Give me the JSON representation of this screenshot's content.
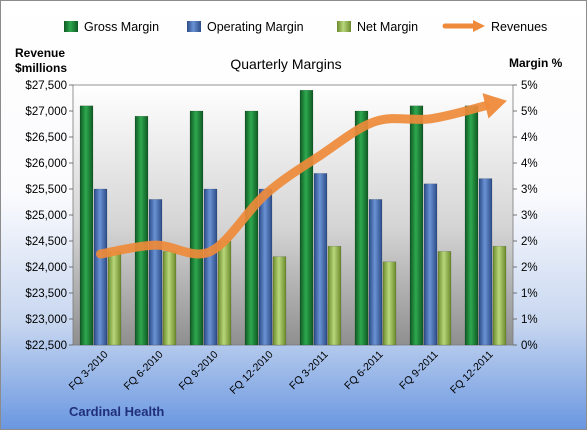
{
  "legend": {
    "gross": "Gross Margin",
    "operating": "Operating Margin",
    "net": "Net Margin",
    "revenues": "Revenues"
  },
  "left_axis_title_line1": "Revenue",
  "left_axis_title_line2": "$millions",
  "right_axis_title": "Margin %",
  "company": "Cardinal Health",
  "colors": {
    "gross": "#1e8a3c",
    "operating": "#4a72b8",
    "net": "#9bbb59",
    "revenues": "#ee8a3a"
  },
  "chart_data": {
    "type": "bar",
    "title": "Quarterly Margins",
    "categories": [
      "FQ 3-2010",
      "FQ 6-2010",
      "FQ 9-2010",
      "FQ 12-2010",
      "FQ 3-2011",
      "FQ 6-2011",
      "FQ 9-2011",
      "FQ 12-2011"
    ],
    "series": [
      {
        "name": "Gross Margin",
        "axis": "right",
        "values": [
          4.6,
          4.4,
          4.5,
          4.5,
          4.9,
          4.5,
          4.6,
          4.6
        ]
      },
      {
        "name": "Operating Margin",
        "axis": "right",
        "values": [
          3.0,
          2.8,
          3.0,
          3.0,
          3.3,
          2.8,
          3.1,
          3.2
        ]
      },
      {
        "name": "Net Margin",
        "axis": "right",
        "values": [
          1.8,
          1.8,
          2.0,
          1.7,
          1.9,
          1.6,
          1.8,
          1.9
        ]
      },
      {
        "name": "Revenues",
        "type": "line",
        "axis": "left",
        "values": [
          24250,
          24420,
          24300,
          25400,
          26150,
          26800,
          26850,
          27100
        ]
      }
    ],
    "ylim_left": [
      22500,
      27500
    ],
    "ylim_right": [
      0,
      5
    ],
    "left_ticks": [
      "$22,500",
      "$23,000",
      "$23,500",
      "$24,000",
      "$24,500",
      "$25,000",
      "$25,500",
      "$26,000",
      "$26,500",
      "$27,000",
      "$27,500"
    ],
    "right_ticks": [
      "0%",
      "1%",
      "1%",
      "2%",
      "2%",
      "3%",
      "3%",
      "4%",
      "4%",
      "5%",
      "5%"
    ],
    "legend_position": "top",
    "grid": false
  }
}
